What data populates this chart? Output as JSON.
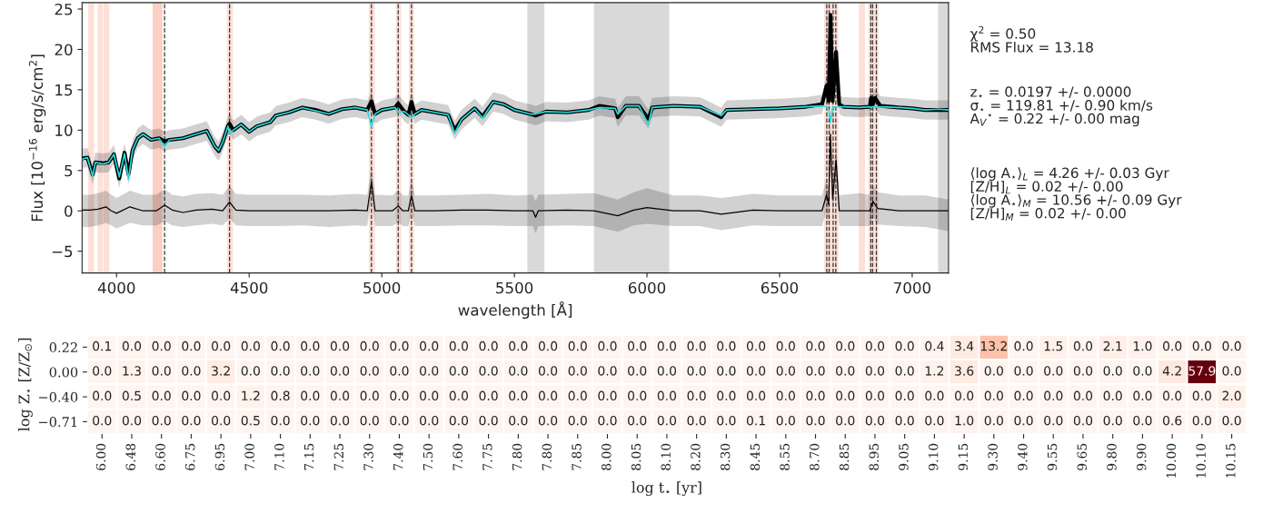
{
  "chart_data": [
    {
      "type": "line",
      "xlabel": "wavelength [Å]",
      "ylabel": "Flux [10$^{−16}$ erg/s/cm$^{2}$]",
      "xlim": [
        3870,
        7137
      ],
      "ylim": [
        -7.7,
        25.8
      ],
      "xticks": [
        4000,
        4500,
        5000,
        5500,
        6000,
        6500,
        7000
      ],
      "yticks": [
        {
          "value": -5,
          "label": "−5"
        },
        0,
        5,
        10,
        15,
        20,
        25
      ],
      "grid": false,
      "marker": "none",
      "series": [
        {
          "color": "#000000",
          "x": [
            3870,
            3890,
            3910,
            3920,
            3950,
            3970,
            3990,
            4010,
            4030,
            4045,
            4060,
            4080,
            4100,
            4130,
            4160,
            4181,
            4200,
            4250,
            4300,
            4340,
            4370,
            4385,
            4400,
            4420,
            4426,
            4440,
            4470,
            4500,
            4530,
            4580,
            4600,
            4650,
            4700,
            4750,
            4800,
            4850,
            4900,
            4945,
            4961,
            4975,
            5000,
            5050,
            5062,
            5085,
            5100,
            5112,
            5125,
            5150,
            5200,
            5250,
            5275,
            5300,
            5350,
            5380,
            5420,
            5460,
            5500,
            5560,
            5580,
            5620,
            5700,
            5780,
            5820,
            5880,
            5890,
            5920,
            5970,
            6005,
            6020,
            6100,
            6200,
            6280,
            6300,
            6400,
            6500,
            6600,
            6660,
            6677,
            6685,
            6692,
            6700,
            6713,
            6725,
            6740,
            6800,
            6840,
            6845,
            6852,
            6860,
            6880,
            6950,
            7000,
            7050,
            7100,
            7137
          ],
          "values": [
            6.5,
            6.6,
            4.5,
            6.0,
            5.9,
            6.0,
            7.0,
            4.0,
            7.2,
            4.5,
            7.5,
            9.0,
            9.5,
            8.8,
            9.0,
            8.6,
            8.8,
            9.0,
            9.5,
            9.9,
            8.0,
            7.4,
            8.5,
            10.5,
            10.8,
            10.0,
            10.7,
            9.8,
            10.5,
            11.0,
            11.8,
            12.2,
            12.8,
            12.5,
            12.0,
            12.6,
            12.8,
            12.5,
            13.6,
            12.0,
            12.5,
            12.8,
            13.3,
            12.3,
            11.9,
            13.5,
            12.0,
            12.5,
            12.2,
            11.9,
            10.0,
            11.3,
            12.7,
            11.7,
            13.5,
            13.2,
            12.5,
            12.0,
            11.8,
            12.3,
            12.2,
            12.5,
            13.0,
            12.7,
            11.6,
            13.0,
            13.0,
            11.4,
            12.8,
            13.0,
            12.9,
            11.6,
            12.5,
            12.6,
            12.7,
            12.9,
            13.2,
            15.5,
            13.6,
            24.3,
            13.6,
            19.7,
            13.2,
            12.9,
            12.8,
            12.9,
            14.0,
            13.2,
            14.0,
            13.0,
            12.8,
            12.7,
            12.5,
            12.5,
            12.5
          ],
          "lower": [
            5.3,
            5.4,
            3.3,
            4.8,
            4.7,
            4.8,
            5.8,
            2.8,
            6.0,
            3.3,
            6.3,
            7.8,
            8.3,
            7.6,
            7.8,
            7.4,
            7.6,
            7.8,
            8.3,
            8.7,
            6.8,
            6.2,
            7.3,
            9.3,
            9.6,
            8.8,
            9.5,
            8.6,
            9.3,
            9.8,
            10.6,
            11.0,
            11.6,
            11.3,
            10.8,
            11.4,
            11.6,
            11.3,
            12.4,
            10.8,
            11.3,
            11.6,
            12.1,
            11.1,
            10.7,
            12.3,
            10.8,
            11.3,
            11.0,
            10.7,
            8.8,
            10.1,
            11.5,
            10.5,
            12.3,
            12.0,
            11.3,
            10.8,
            10.6,
            11.1,
            11.0,
            11.3,
            11.8,
            11.5,
            10.4,
            11.8,
            11.8,
            10.2,
            11.6,
            11.8,
            11.7,
            10.4,
            11.3,
            11.4,
            11.5,
            11.7,
            12.0,
            14.3,
            12.4,
            23.1,
            12.4,
            18.5,
            12.0,
            11.7,
            11.6,
            11.7,
            12.8,
            12.0,
            12.8,
            11.8,
            11.6,
            11.5,
            11.3,
            11.3,
            11.3
          ],
          "upper": [
            7.7,
            7.8,
            5.7,
            7.2,
            7.1,
            7.2,
            8.2,
            5.2,
            8.4,
            5.7,
            8.7,
            10.2,
            10.7,
            10.0,
            10.2,
            9.8,
            10.0,
            10.2,
            10.7,
            11.1,
            9.2,
            8.6,
            9.7,
            11.7,
            12.0,
            11.2,
            11.9,
            11.0,
            11.7,
            12.2,
            13.0,
            13.4,
            14.0,
            13.7,
            13.2,
            13.8,
            14.0,
            13.7,
            14.8,
            13.2,
            13.7,
            14.0,
            14.5,
            13.5,
            13.1,
            14.7,
            13.2,
            13.7,
            13.4,
            13.1,
            11.2,
            12.5,
            13.9,
            12.9,
            14.7,
            14.4,
            13.7,
            13.2,
            13.0,
            13.5,
            13.4,
            13.7,
            14.2,
            13.9,
            12.8,
            14.2,
            14.2,
            12.6,
            14.0,
            14.2,
            14.1,
            12.8,
            13.7,
            13.8,
            13.9,
            14.1,
            14.4,
            16.7,
            14.8,
            25.5,
            14.8,
            20.9,
            14.4,
            14.1,
            14.0,
            14.1,
            15.2,
            14.4,
            15.2,
            14.2,
            14.0,
            13.9,
            13.7,
            13.7,
            13.7
          ]
        },
        {
          "color": "#22dede",
          "x": [
            3870,
            3890,
            3910,
            3920,
            3950,
            3970,
            3990,
            4010,
            4030,
            4045,
            4060,
            4080,
            4100,
            4130,
            4160,
            4181,
            4200,
            4250,
            4300,
            4340,
            4370,
            4385,
            4400,
            4420,
            4426,
            4440,
            4470,
            4500,
            4530,
            4580,
            4600,
            4650,
            4700,
            4750,
            4800,
            4850,
            4900,
            4945,
            4961,
            4975,
            5000,
            5050,
            5062,
            5085,
            5100,
            5112,
            5125,
            5150,
            5200,
            5250,
            5275,
            5300,
            5350,
            5380,
            5420,
            5460,
            5500,
            5560,
            5580,
            5620,
            5700,
            5780,
            5820,
            5880,
            5890,
            5920,
            5970,
            6005,
            6020,
            6100,
            6200,
            6280,
            6300,
            6400,
            6500,
            6600,
            6660,
            6677,
            6685,
            6692,
            6700,
            6713,
            6725,
            6740,
            6800,
            6840,
            6845,
            6852,
            6860,
            6880,
            6950,
            7000,
            7050,
            7100,
            7137
          ],
          "values": [
            6.4,
            6.6,
            4.3,
            6.0,
            5.8,
            6.0,
            7.0,
            4.2,
            7.1,
            3.9,
            7.5,
            9.0,
            9.5,
            8.8,
            9.0,
            8.0,
            8.8,
            9.0,
            9.5,
            9.9,
            8.0,
            7.5,
            8.5,
            10.5,
            9.6,
            10.0,
            10.7,
            9.8,
            10.5,
            11.0,
            11.8,
            12.2,
            12.8,
            12.4,
            12.0,
            12.6,
            12.8,
            12.5,
            10.4,
            12.0,
            12.5,
            12.8,
            12.2,
            12.3,
            11.9,
            11.5,
            12.0,
            12.5,
            12.2,
            11.9,
            9.6,
            11.3,
            12.7,
            11.5,
            13.5,
            13.2,
            12.5,
            12.0,
            12.0,
            12.3,
            12.2,
            12.5,
            12.8,
            12.7,
            12.0,
            13.0,
            13.0,
            10.7,
            12.8,
            13.0,
            12.9,
            11.8,
            12.5,
            12.6,
            12.7,
            12.9,
            13.0,
            12.9,
            12.6,
            11.0,
            12.8,
            12.9,
            12.9,
            12.9,
            12.8,
            12.9,
            12.8,
            12.9,
            12.8,
            12.9,
            12.8,
            12.7,
            12.5,
            12.6,
            12.5
          ]
        },
        {
          "color": "#000000",
          "x": [
            3870,
            3900,
            3930,
            3960,
            3980,
            4000,
            4050,
            4100,
            4150,
            4181,
            4210,
            4250,
            4300,
            4360,
            4400,
            4426,
            4450,
            4500,
            4600,
            4700,
            4800,
            4900,
            4945,
            4961,
            4975,
            5040,
            5062,
            5080,
            5100,
            5112,
            5125,
            5200,
            5300,
            5400,
            5500,
            5570,
            5580,
            5590,
            5700,
            5800,
            5890,
            5950,
            6000,
            6100,
            6200,
            6280,
            6400,
            6500,
            6600,
            6660,
            6677,
            6685,
            6692,
            6700,
            6713,
            6725,
            6740,
            6800,
            6840,
            6852,
            6870,
            6950,
            7050,
            7137
          ],
          "values": [
            0.1,
            0.1,
            0.2,
            0.5,
            0.0,
            -0.3,
            0.5,
            0.0,
            0.0,
            0.7,
            0.1,
            -0.2,
            0.1,
            0.2,
            0.0,
            1.1,
            0.1,
            0.0,
            0.0,
            0.0,
            0.0,
            0.1,
            0.0,
            3.6,
            0.0,
            0.0,
            0.6,
            0.0,
            0.0,
            1.9,
            0.0,
            0.0,
            0.1,
            0.1,
            0.0,
            0.0,
            -0.8,
            0.0,
            0.1,
            0.0,
            -0.6,
            0.1,
            0.4,
            0.0,
            0.0,
            -0.4,
            0.1,
            0.0,
            0.0,
            0.0,
            2.0,
            0.8,
            9.5,
            1.5,
            6.3,
            0.0,
            0.0,
            0.0,
            0.0,
            1.2,
            0.3,
            0.0,
            0.0,
            0.0
          ],
          "lower": [
            -2.0,
            -2.0,
            -1.8,
            -1.5,
            -1.8,
            -2.2,
            -1.5,
            -1.8,
            -1.8,
            -1.3,
            -1.8,
            -2.0,
            -1.8,
            -1.6,
            -1.8,
            -0.9,
            -1.8,
            -1.9,
            -1.9,
            -1.8,
            -2.0,
            -1.8,
            -1.9,
            1.6,
            -1.9,
            -1.9,
            -1.4,
            -1.9,
            -1.9,
            -0.1,
            -1.9,
            -1.9,
            -1.8,
            -1.8,
            -1.9,
            -1.9,
            -2.8,
            -1.9,
            -1.8,
            -1.9,
            -2.6,
            -1.8,
            -1.6,
            -1.9,
            -1.9,
            -2.4,
            -1.8,
            -1.9,
            -1.9,
            -1.9,
            0.0,
            -1.2,
            7.5,
            -0.5,
            4.3,
            -1.9,
            -1.9,
            -1.9,
            -1.9,
            -0.8,
            -1.7,
            -1.9,
            -2.0,
            -2.5
          ],
          "upper": [
            2.0,
            2.0,
            2.2,
            2.5,
            2.0,
            1.6,
            2.5,
            2.0,
            2.0,
            2.7,
            2.0,
            1.8,
            2.1,
            2.2,
            2.0,
            3.1,
            2.1,
            2.0,
            2.0,
            2.0,
            1.9,
            2.1,
            2.0,
            5.6,
            2.0,
            1.9,
            2.6,
            1.9,
            1.9,
            3.9,
            1.9,
            1.9,
            2.0,
            2.1,
            1.9,
            2.0,
            1.2,
            2.0,
            2.1,
            2.2,
            1.4,
            2.3,
            2.8,
            1.9,
            1.9,
            1.6,
            2.1,
            1.9,
            1.9,
            1.9,
            4.0,
            2.8,
            11.5,
            3.5,
            8.3,
            1.9,
            2.0,
            2.2,
            2.0,
            3.2,
            2.3,
            1.9,
            1.9,
            1.4
          ]
        }
      ],
      "bands": [
        {
          "axis": "x",
          "from": 3893,
          "to": 3915,
          "color": "#fde0d8"
        },
        {
          "axis": "x",
          "from": 3929,
          "to": 3948,
          "color": "#fde0d8"
        },
        {
          "axis": "x",
          "from": 3950,
          "to": 3973,
          "color": "#fde0d8"
        },
        {
          "axis": "x",
          "from": 4136,
          "to": 4173,
          "color": "#fbcfc2"
        },
        {
          "axis": "x",
          "from": 4416,
          "to": 4439,
          "color": "#fde0d8"
        },
        {
          "axis": "x",
          "from": 4951,
          "to": 4974,
          "color": "#fde0d8"
        },
        {
          "axis": "x",
          "from": 5053,
          "to": 5073,
          "color": "#fde0d8"
        },
        {
          "axis": "x",
          "from": 5102,
          "to": 5122,
          "color": "#fde0d8"
        },
        {
          "axis": "x",
          "from": 5549,
          "to": 5613,
          "color": "#d9d9d9"
        },
        {
          "axis": "x",
          "from": 5800,
          "to": 6084,
          "color": "#d9d9d9"
        },
        {
          "axis": "x",
          "from": 6668,
          "to": 6722,
          "color": "#fde0d8"
        },
        {
          "axis": "x",
          "from": 6799,
          "to": 6822,
          "color": "#fde0d8"
        },
        {
          "axis": "x",
          "from": 6835,
          "to": 6873,
          "color": "#fde0d8"
        },
        {
          "axis": "x",
          "from": 7098,
          "to": 7137,
          "color": "#d9d9d9"
        }
      ],
      "ref_lines": [
        {
          "axis": "x",
          "value": 4181,
          "color": "#333333",
          "line_style": "dashed"
        },
        {
          "axis": "x",
          "value": 4426,
          "color": "#333333",
          "line_style": "dashed"
        },
        {
          "axis": "x",
          "value": 4961,
          "color": "#333333",
          "line_style": "dashed"
        },
        {
          "axis": "x",
          "value": 5062,
          "color": "#333333",
          "line_style": "dashed"
        },
        {
          "axis": "x",
          "value": 5112,
          "color": "#333333",
          "line_style": "dashed"
        },
        {
          "axis": "x",
          "value": 6678,
          "color": "#333333",
          "line_style": "dashed"
        },
        {
          "axis": "x",
          "value": 6687,
          "color": "#333333",
          "line_style": "dashed"
        },
        {
          "axis": "x",
          "value": 6702,
          "color": "#333333",
          "line_style": "dashed"
        },
        {
          "axis": "x",
          "value": 6712,
          "color": "#333333",
          "line_style": "dashed"
        },
        {
          "axis": "x",
          "value": 6844,
          "color": "#333333",
          "line_style": "dashed"
        },
        {
          "axis": "x",
          "value": 6851,
          "color": "#333333",
          "line_style": "dashed"
        },
        {
          "axis": "x",
          "value": 6865,
          "color": "#333333",
          "line_style": "dashed"
        }
      ],
      "annotations": [
        "χ$^{2}$ = 0.50\nRMS Flux = 13.18",
        "z$_{⋆}$ = 0.0197 +/- 0.0000\nσ$_{⋆}$ = 119.81 +/- 0.90 km/s\nA$_{V}$$^{⋆}$ = 0.22 +/- 0.00 mag",
        "⟨log A$_{⋆}$⟩$_{L}$ = 4.26 +/- 0.03 Gyr\n[Z/H]$_{L}$ = 0.02 +/- 0.00\n⟨log A$_{⋆}$⟩$_{M}$ = 10.56 +/- 0.09 Gyr\n[Z/H]$_{M}$ = 0.02 +/- 0.00"
      ]
    },
    {
      "type": "heatmap",
      "xlabel": "log t$_{⋆}$ [yr]",
      "ylabel": "log Z$_{⋆}$ [Z/Z$_{⊙}$]",
      "cell_labels": [
        [
          "0.1",
          "0.0",
          "0.0",
          "0.0",
          "0.0",
          "0.0",
          "0.0",
          "0.0",
          "0.0",
          "0.0",
          "0.0",
          "0.0",
          "0.0",
          "0.0",
          "0.0",
          "0.0",
          "0.0",
          "0.0",
          "0.0",
          "0.0",
          "0.0",
          "0.0",
          "0.0",
          "0.0",
          "0.0",
          "0.0",
          "0.0",
          "0.0",
          "0.4",
          "3.4",
          "13.2",
          "0.0",
          "1.5",
          "0.0",
          "2.1",
          "1.0",
          "0.0",
          "0.0",
          "0.0"
        ],
        [
          "0.0",
          "1.3",
          "0.0",
          "0.0",
          "3.2",
          "0.0",
          "0.0",
          "0.0",
          "0.0",
          "0.0",
          "0.0",
          "0.0",
          "0.0",
          "0.0",
          "0.0",
          "0.0",
          "0.0",
          "0.0",
          "0.0",
          "0.0",
          "0.0",
          "0.0",
          "0.0",
          "0.0",
          "0.0",
          "0.0",
          "0.0",
          "0.0",
          "1.2",
          "3.6",
          "0.0",
          "0.0",
          "0.0",
          "0.0",
          "0.0",
          "0.0",
          "4.2",
          "57.9",
          "0.0"
        ],
        [
          "0.0",
          "0.5",
          "0.0",
          "0.0",
          "0.0",
          "1.2",
          "0.8",
          "0.0",
          "0.0",
          "0.0",
          "0.0",
          "0.0",
          "0.0",
          "0.0",
          "0.0",
          "0.0",
          "0.0",
          "0.0",
          "0.0",
          "0.0",
          "0.0",
          "0.0",
          "0.0",
          "0.0",
          "0.0",
          "0.0",
          "0.0",
          "0.0",
          "0.0",
          "0.0",
          "0.0",
          "0.0",
          "0.0",
          "0.0",
          "0.0",
          "0.0",
          "0.0",
          "0.0",
          "2.0"
        ],
        [
          "0.0",
          "0.0",
          "0.0",
          "0.0",
          "0.0",
          "0.5",
          "0.0",
          "0.0",
          "0.0",
          "0.0",
          "0.0",
          "0.0",
          "0.0",
          "0.0",
          "0.0",
          "0.0",
          "0.0",
          "0.0",
          "0.0",
          "0.0",
          "0.0",
          "0.0",
          "0.1",
          "0.0",
          "0.0",
          "0.0",
          "0.0",
          "0.0",
          "0.0",
          "1.0",
          "0.0",
          "0.0",
          "0.0",
          "0.0",
          "0.0",
          "0.0",
          "0.6",
          "0.0",
          "0.0"
        ]
      ],
      "categories": [
        "6.00",
        "6.48",
        "6.60",
        "6.75",
        "6.95",
        "7.00",
        "7.10",
        "7.15",
        "7.25",
        "7.30",
        "7.40",
        "7.50",
        "7.60",
        "7.75",
        "7.80",
        "7.80",
        "7.85",
        "8.00",
        "8.05",
        "8.10",
        "8.20",
        "8.30",
        "8.45",
        "8.55",
        "8.70",
        "8.85",
        "8.95",
        "9.05",
        "9.10",
        "9.15",
        "9.30",
        "9.40",
        "9.55",
        "9.65",
        "9.80",
        "9.90",
        "10.00",
        "10.10",
        "10.15"
      ],
      "y_categories": [
        "0.22",
        "0.00",
        "−0.40",
        "−0.71"
      ],
      "cells": [
        [
          0.1,
          0.0,
          0.0,
          0.0,
          0.0,
          0.0,
          0.0,
          0.0,
          0.0,
          0.0,
          0.0,
          0.0,
          0.0,
          0.0,
          0.0,
          0.0,
          0.0,
          0.0,
          0.0,
          0.0,
          0.0,
          0.0,
          0.0,
          0.0,
          0.0,
          0.0,
          0.0,
          0.0,
          0.4,
          3.4,
          13.2,
          0.0,
          1.5,
          0.0,
          2.1,
          1.0,
          0.0,
          0.0,
          0.0
        ],
        [
          0.0,
          1.3,
          0.0,
          0.0,
          3.2,
          0.0,
          0.0,
          0.0,
          0.0,
          0.0,
          0.0,
          0.0,
          0.0,
          0.0,
          0.0,
          0.0,
          0.0,
          0.0,
          0.0,
          0.0,
          0.0,
          0.0,
          0.0,
          0.0,
          0.0,
          0.0,
          0.0,
          0.0,
          1.2,
          3.6,
          0.0,
          0.0,
          0.0,
          0.0,
          0.0,
          0.0,
          4.2,
          57.9,
          0.0
        ],
        [
          0.0,
          0.5,
          0.0,
          0.0,
          0.0,
          1.2,
          0.8,
          0.0,
          0.0,
          0.0,
          0.0,
          0.0,
          0.0,
          0.0,
          0.0,
          0.0,
          0.0,
          0.0,
          0.0,
          0.0,
          0.0,
          0.0,
          0.0,
          0.0,
          0.0,
          0.0,
          0.0,
          0.0,
          0.0,
          0.0,
          0.0,
          0.0,
          0.0,
          0.0,
          0.0,
          0.0,
          0.0,
          0.0,
          2.0
        ],
        [
          0.0,
          0.0,
          0.0,
          0.0,
          0.0,
          0.5,
          0.0,
          0.0,
          0.0,
          0.0,
          0.0,
          0.0,
          0.0,
          0.0,
          0.0,
          0.0,
          0.0,
          0.0,
          0.0,
          0.0,
          0.0,
          0.0,
          0.1,
          0.0,
          0.0,
          0.0,
          0.0,
          0.0,
          0.0,
          1.0,
          0.0,
          0.0,
          0.0,
          0.0,
          0.0,
          0.0,
          0.6,
          0.0,
          0.0
        ]
      ]
    }
  ]
}
